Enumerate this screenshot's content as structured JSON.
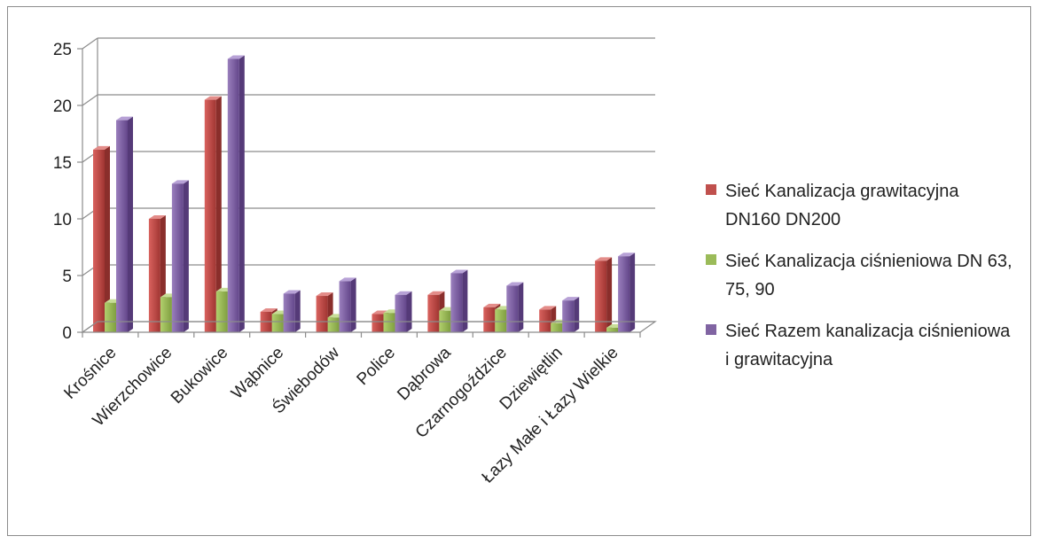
{
  "chart_data": {
    "type": "bar",
    "title": "",
    "xlabel": "",
    "ylabel": "",
    "ylim": [
      0,
      25
    ],
    "yticks": [
      "0",
      "5",
      "10",
      "15",
      "20",
      "25"
    ],
    "grid": true,
    "legend_position": "right",
    "categories": [
      "Krośnice",
      "Wierzchowice",
      "Bukowice",
      "Wąbnice",
      "Świebodów",
      "Police",
      "Dąbrowa",
      "Czarnogoździce",
      "Dziewiętlin",
      "Łazy Małe i Łazy Wielkie"
    ],
    "series": [
      {
        "name": "Sieć Kanalizacja grawitacyjna DN160 DN200",
        "color": "#c0504d",
        "values": [
          16.1,
          10.0,
          20.5,
          1.8,
          3.2,
          1.6,
          3.3,
          2.2,
          2.0,
          6.3
        ]
      },
      {
        "name": "Sieć Kanalizacja ciśnieniowa DN 63, 75, 90",
        "color": "#9bbb59",
        "values": [
          2.6,
          3.1,
          3.6,
          1.6,
          1.3,
          1.7,
          1.9,
          2.0,
          0.8,
          0.4
        ]
      },
      {
        "name": "Sieć Razem kanalizacja ciśnieniowa i grawitacyjna",
        "color": "#8064a2",
        "values": [
          18.7,
          13.1,
          24.1,
          3.4,
          4.5,
          3.3,
          5.2,
          4.1,
          2.8,
          6.7
        ]
      }
    ]
  }
}
